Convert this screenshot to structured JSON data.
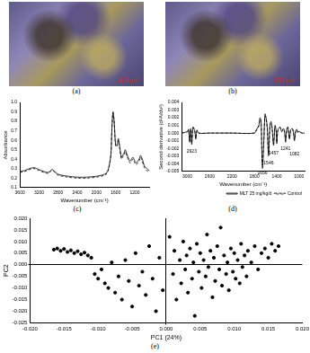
{
  "images": [
    {
      "label": "(a)",
      "scale_bar": "100 µm"
    },
    {
      "label": "(b)",
      "scale_bar": "100 µm"
    }
  ],
  "chart_data": [
    {
      "type": "line",
      "label": "(c)",
      "x_label": "Wavenumber (cm⁻¹)",
      "y_label": "Absorbance",
      "xlim": [
        3600,
        900
      ],
      "xticks": [
        3600,
        3200,
        2800,
        2400,
        2000,
        1600,
        1200
      ],
      "ylim": [
        0.1,
        1.0
      ],
      "yticks": [
        0.1,
        0.2,
        0.3,
        0.4,
        0.5,
        0.6,
        0.7,
        0.8,
        0.9,
        {
          "value": 1.0,
          "label": "1.0"
        }
      ],
      "grid": false,
      "x": [
        3600,
        3500,
        3400,
        3300,
        3200,
        3100,
        3000,
        2960,
        2920,
        2850,
        2800,
        2600,
        2400,
        2200,
        2000,
        1900,
        1800,
        1750,
        1700,
        1680,
        1656,
        1630,
        1600,
        1570,
        1545,
        1520,
        1480,
        1455,
        1420,
        1400,
        1370,
        1340,
        1300,
        1270,
        1240,
        1200,
        1170,
        1140,
        1110,
        1080,
        1050,
        1020,
        1000,
        950,
        900
      ],
      "series": [
        {
          "color": "#000000",
          "line_style": "solid",
          "values": [
            0.27,
            0.28,
            0.3,
            0.31,
            0.29,
            0.27,
            0.26,
            0.28,
            0.29,
            0.26,
            0.24,
            0.22,
            0.21,
            0.21,
            0.22,
            0.23,
            0.25,
            0.3,
            0.45,
            0.7,
            0.9,
            0.8,
            0.55,
            0.55,
            0.62,
            0.55,
            0.42,
            0.44,
            0.47,
            0.5,
            0.46,
            0.42,
            0.38,
            0.4,
            0.42,
            0.38,
            0.36,
            0.38,
            0.4,
            0.44,
            0.41,
            0.36,
            0.33,
            0.3,
            0.28
          ]
        },
        {
          "color": "#000000",
          "line_style": "dashed",
          "values": [
            0.26,
            0.27,
            0.29,
            0.3,
            0.28,
            0.26,
            0.25,
            0.27,
            0.28,
            0.25,
            0.23,
            0.21,
            0.2,
            0.2,
            0.21,
            0.22,
            0.24,
            0.29,
            0.44,
            0.69,
            0.89,
            0.78,
            0.53,
            0.54,
            0.6,
            0.53,
            0.4,
            0.42,
            0.45,
            0.48,
            0.44,
            0.4,
            0.36,
            0.38,
            0.4,
            0.36,
            0.34,
            0.36,
            0.38,
            0.42,
            0.39,
            0.34,
            0.31,
            0.28,
            0.26
          ]
        }
      ]
    },
    {
      "type": "line",
      "label": "(d)",
      "x_label": "Wavenumber (cm⁻¹)",
      "y_label": "Second derivative (d²A/dν²)",
      "xlim": [
        3100,
        900
      ],
      "xticks": [
        3000,
        2600,
        2200,
        1800,
        1400,
        1000
      ],
      "ylim": [
        -0.005,
        0.004
      ],
      "yticks": [
        -0.005,
        -0.004,
        -0.003,
        -0.002,
        -0.001,
        {
          "value": 0,
          "label": "0.000"
        },
        0.001,
        0.002,
        0.003,
        0.004
      ],
      "grid": false,
      "legend": "bottom",
      "x": [
        3100,
        3000,
        2980,
        2960,
        2940,
        2923,
        2900,
        2870,
        2850,
        2830,
        2800,
        2600,
        2200,
        1800,
        1760,
        1720,
        1700,
        1680,
        1656,
        1630,
        1610,
        1590,
        1570,
        1546,
        1520,
        1500,
        1480,
        1457,
        1430,
        1410,
        1398,
        1380,
        1340,
        1310,
        1280,
        1260,
        1241,
        1220,
        1200,
        1171,
        1150,
        1120,
        1100,
        1082,
        1060,
        1040,
        1020,
        1000,
        950,
        900
      ],
      "series": [
        {
          "name": "MLT 25 mg/kg/d",
          "color": "#000000",
          "line_style": "solid",
          "values": [
            0,
            0.0002,
            0.0005,
            -0.0012,
            0.0006,
            -0.0015,
            0.0008,
            0.0003,
            -0.0008,
            0.0004,
            0,
            0,
            0,
            0,
            0.0005,
            0.001,
            0.002,
            0.0015,
            -0.0046,
            -0.001,
            0.0025,
            0.002,
            0.0008,
            -0.003,
            0.0012,
            0.0015,
            0.0005,
            -0.0016,
            0.001,
            0.0003,
            -0.0014,
            0.0004,
            0.0008,
            0.0002,
            0.0006,
            0.0002,
            -0.0012,
            0.0005,
            0.0008,
            -0.0008,
            0.0004,
            0.0006,
            0.0001,
            -0.001,
            0.0003,
            0.0005,
            0.0001,
            0.0002,
            0,
            0
          ]
        },
        {
          "name": "Control",
          "color": "#000000",
          "line_style": "dashed",
          "values": [
            0,
            0.0002,
            0.0004,
            -0.001,
            0.0005,
            -0.0013,
            0.0007,
            0.0003,
            -0.0007,
            0.0003,
            0,
            0,
            0,
            0,
            0.0004,
            0.0009,
            0.0018,
            0.0014,
            -0.0042,
            -0.0008,
            0.0022,
            0.0018,
            0.0006,
            -0.0027,
            0.001,
            0.0013,
            0.0004,
            -0.0014,
            0.0009,
            0.0002,
            -0.0012,
            0.0003,
            0.0007,
            0.0002,
            0.0005,
            0.0002,
            -0.001,
            0.0004,
            0.0007,
            -0.0007,
            0.0003,
            0.0005,
            0.0001,
            -0.0009,
            0.0002,
            0.0004,
            0.0001,
            0.0002,
            0,
            0
          ]
        }
      ],
      "annotations": [
        {
          "x": 2923,
          "y": -0.0021,
          "text": "2923"
        },
        {
          "x": 1656,
          "y": -0.0049,
          "text": "1656"
        },
        {
          "x": 1546,
          "y": -0.0036,
          "text": "1546"
        },
        {
          "x": 1457,
          "y": -0.0023,
          "text": "1457"
        },
        {
          "x": 1241,
          "y": -0.0017,
          "text": "1241"
        },
        {
          "x": 1082,
          "y": -0.0025,
          "text": "1082"
        }
      ]
    },
    {
      "type": "scatter",
      "label": "(e)",
      "x_label": "PC1 (24%)",
      "y_label": "PC2",
      "xlim": [
        -0.02,
        0.02
      ],
      "xticks": [
        {
          "value": -0.02,
          "label": "-0.020"
        },
        {
          "value": -0.015,
          "label": "-0.015"
        },
        {
          "value": -0.01,
          "label": "-0.010"
        },
        {
          "value": -0.005,
          "label": "-0.005"
        },
        {
          "value": 0,
          "label": "0.000"
        },
        {
          "value": 0.005,
          "label": "0.005"
        },
        {
          "value": 0.01,
          "label": "0.010"
        },
        {
          "value": 0.015,
          "label": "0.015"
        },
        {
          "value": 0.02,
          "label": "0.020"
        }
      ],
      "ylim": [
        -0.025,
        0.02
      ],
      "yticks": [
        {
          "value": -0.025,
          "label": "-0.025"
        },
        {
          "value": -0.02,
          "label": "-0.020"
        },
        {
          "value": -0.015,
          "label": "-0.015"
        },
        {
          "value": -0.01,
          "label": "-0.010"
        },
        {
          "value": -0.005,
          "label": "-0.005"
        },
        {
          "value": 0,
          "label": "0.000"
        },
        {
          "value": 0.005,
          "label": "0.005"
        },
        {
          "value": 0.01,
          "label": "0.010"
        },
        {
          "value": 0.015,
          "label": "0.015"
        },
        {
          "value": 0.02,
          "label": "0.020"
        }
      ],
      "grid": false,
      "color": "#000000",
      "marker": "circle",
      "x": [
        -0.0165,
        -0.016,
        -0.0155,
        -0.015,
        -0.0145,
        -0.014,
        -0.0135,
        -0.013,
        -0.0125,
        -0.012,
        -0.0115,
        -0.011,
        -0.0105,
        -0.01,
        -0.0095,
        -0.009,
        -0.0085,
        -0.008,
        -0.0075,
        -0.007,
        -0.0065,
        -0.006,
        -0.0055,
        -0.005,
        -0.0045,
        -0.004,
        -0.0035,
        -0.003,
        -0.0025,
        -0.002,
        -0.0015,
        -0.001,
        -0.0005,
        0.0005,
        0.001,
        0.0012,
        0.0015,
        0.002,
        0.0022,
        0.0025,
        0.0028,
        0.003,
        0.0032,
        0.0035,
        0.0038,
        0.004,
        0.0042,
        0.0045,
        0.0048,
        0.005,
        0.0052,
        0.0055,
        0.0058,
        0.006,
        0.0062,
        0.0065,
        0.0068,
        0.007,
        0.0072,
        0.0075,
        0.0078,
        0.008,
        0.0082,
        0.0085,
        0.0088,
        0.009,
        0.0092,
        0.0095,
        0.0098,
        0.01,
        0.0102,
        0.0105,
        0.0108,
        0.011,
        0.0112,
        0.0115,
        0.0118,
        0.012,
        0.0125,
        0.013,
        0.0135,
        0.014,
        0.0145,
        0.015,
        0.0155,
        0.016,
        0.0165
      ],
      "values": [
        0.0065,
        0.007,
        0.006,
        0.0068,
        0.0055,
        0.0062,
        0.005,
        0.0058,
        0.0045,
        0.0052,
        0.004,
        0.003,
        -0.004,
        -0.006,
        -0.002,
        -0.008,
        -0.01,
        0.001,
        -0.012,
        -0.005,
        -0.015,
        0.002,
        -0.007,
        -0.018,
        0.005,
        -0.009,
        -0.003,
        -0.013,
        0.008,
        -0.006,
        -0.02,
        0.003,
        -0.011,
        0.012,
        -0.004,
        0.006,
        -0.015,
        0.002,
        -0.008,
        0.01,
        -0.002,
        0.004,
        -0.012,
        0.007,
        -0.006,
        0.001,
        -0.022,
        0.009,
        -0.003,
        0.005,
        -0.01,
        0.002,
        -0.005,
        0.013,
        -0.001,
        0.006,
        -0.014,
        0.003,
        -0.007,
        0.008,
        -0.002,
        0.016,
        -0.009,
        0.004,
        -0.004,
        0.001,
        -0.011,
        0.007,
        -0.003,
        0.005,
        -0.006,
        0.002,
        -0.008,
        0.009,
        -0.001,
        0.004,
        -0.005,
        0.006,
        0.001,
        0.008,
        -0.002,
        0.005,
        0.007,
        0.003,
        0.009,
        0.006,
        0.008
      ]
    }
  ]
}
